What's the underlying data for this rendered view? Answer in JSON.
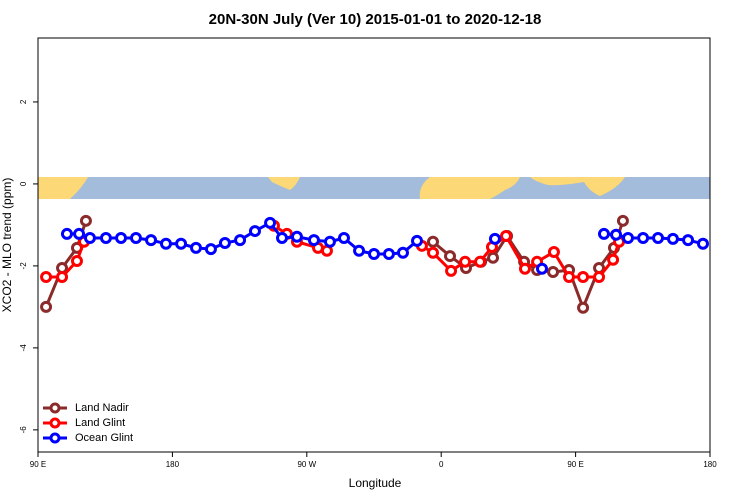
{
  "chart_data": {
    "type": "line",
    "title": "20N-30N July (Ver 10)   2015-01-01 to 2020-12-18",
    "x_label": "Longitude",
    "y_label": "XCO2 - MLO trend (ppm)",
    "xlim": [
      90,
      540
    ],
    "ylim": [
      3.56,
      -6.54
    ],
    "xticks": [
      {
        "value": 90,
        "label": "90 E"
      },
      180,
      {
        "value": 270,
        "label": "90 W"
      },
      {
        "value": 360,
        "label": "0"
      },
      {
        "value": 450,
        "label": "90 E"
      },
      {
        "value": 540,
        "label": "180"
      }
    ],
    "yticks": [
      2,
      0,
      -2,
      -4,
      -6
    ],
    "legend_position": "bottom-left",
    "series": [
      {
        "name": "Land Nadir",
        "color": "#8b2a2a",
        "x": [
          95.4,
          106.1,
          116.1,
          122.1,
          null,
          354.5,
          365.9,
          376.6,
          386.7,
          394.7,
          404.1,
          415.5,
          424.2,
          434.9,
          445.6,
          455.0,
          465.7,
          475.7,
          481.7
        ],
        "values": [
          -3.0,
          -2.05,
          -1.56,
          -0.9,
          null,
          -1.41,
          -1.76,
          -2.05,
          -1.9,
          -1.8,
          -1.27,
          -1.9,
          -2.1,
          -2.15,
          -2.1,
          -3.02,
          -2.05,
          -1.56,
          -0.9
        ]
      },
      {
        "name": "Land Glint",
        "color": "#ff0000",
        "x": [
          95.4,
          106.1,
          116.1,
          120.8,
          null,
          248.0,
          256.7,
          263.4,
          277.5,
          283.5,
          null,
          347.1,
          354.5,
          366.6,
          376.0,
          386.0,
          394.0,
          403.4,
          416.1,
          424.2,
          435.5,
          445.6,
          455.0,
          465.7,
          475.1,
          479.1
        ],
        "values": [
          -2.27,
          -2.27,
          -1.88,
          -1.41,
          null,
          -1.02,
          -1.22,
          -1.41,
          -1.56,
          -1.63,
          null,
          -1.51,
          -1.68,
          -2.12,
          -1.9,
          -1.9,
          -1.54,
          -1.27,
          -2.07,
          -1.9,
          -1.66,
          -2.27,
          -2.27,
          -2.27,
          -1.85,
          -1.41
        ]
      },
      {
        "name": "Ocean Glint",
        "color": "#0000ff",
        "x": [
          109.4,
          117.5,
          124.8,
          135.5,
          145.6,
          155.6,
          165.7,
          175.7,
          185.8,
          195.8,
          205.8,
          215.2,
          225.3,
          235.3,
          245.4,
          253.4,
          263.4,
          274.8,
          285.5,
          294.9,
          305.0,
          315.0,
          325.0,
          334.4,
          343.8,
          null,
          396.0,
          null,
          427.5,
          null,
          469.0,
          477.1,
          485.1,
          495.2,
          505.2,
          515.2,
          525.3,
          535.3
        ],
        "values": [
          -1.22,
          -1.22,
          -1.32,
          -1.32,
          -1.32,
          -1.32,
          -1.37,
          -1.46,
          -1.46,
          -1.56,
          -1.59,
          -1.44,
          -1.37,
          -1.15,
          -0.95,
          -1.32,
          -1.29,
          -1.37,
          -1.41,
          -1.32,
          -1.63,
          -1.71,
          -1.71,
          -1.68,
          -1.39,
          null,
          -1.34,
          null,
          -2.07,
          null,
          -1.22,
          -1.24,
          -1.32,
          -1.32,
          -1.32,
          -1.34,
          -1.37,
          -1.46
        ]
      }
    ]
  }
}
